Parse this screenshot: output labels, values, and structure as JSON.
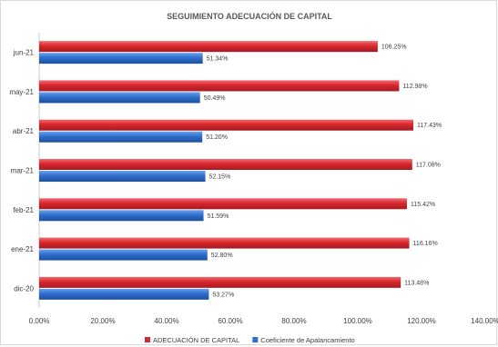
{
  "chart_data": {
    "type": "bar",
    "orientation": "horizontal",
    "title": "SEGUIMIENTO ADECUACIÓN DE CAPITAL",
    "categories": [
      "jun-21",
      "may-21",
      "abr-21",
      "mar-21",
      "feb-21",
      "ene-21",
      "dic-20"
    ],
    "series": [
      {
        "name": "ADECUACIÓN DE CAPITAL",
        "color": "#d9272e",
        "values": [
          106.25,
          112.98,
          117.43,
          117.08,
          115.42,
          116.16,
          113.48
        ],
        "labels": [
          "106.25%",
          "112.98%",
          "117.43%",
          "117.08%",
          "115.42%",
          "116.16%",
          "113.48%"
        ]
      },
      {
        "name": "Coeficiente de Apalancamiento",
        "color": "#2f6fcc",
        "values": [
          51.34,
          50.49,
          51.2,
          52.15,
          51.59,
          52.8,
          53.27
        ],
        "labels": [
          "51.34%",
          "50.49%",
          "51.20%",
          "52.15%",
          "51.59%",
          "52.80%",
          "53.27%"
        ]
      }
    ],
    "xlim": [
      0,
      140
    ],
    "xticks": [
      "0.00%",
      "20.00%",
      "40.00%",
      "60.00%",
      "80.00%",
      "100.00%",
      "120.00%",
      "140.00%"
    ],
    "grid": false,
    "legend_position": "bottom"
  }
}
